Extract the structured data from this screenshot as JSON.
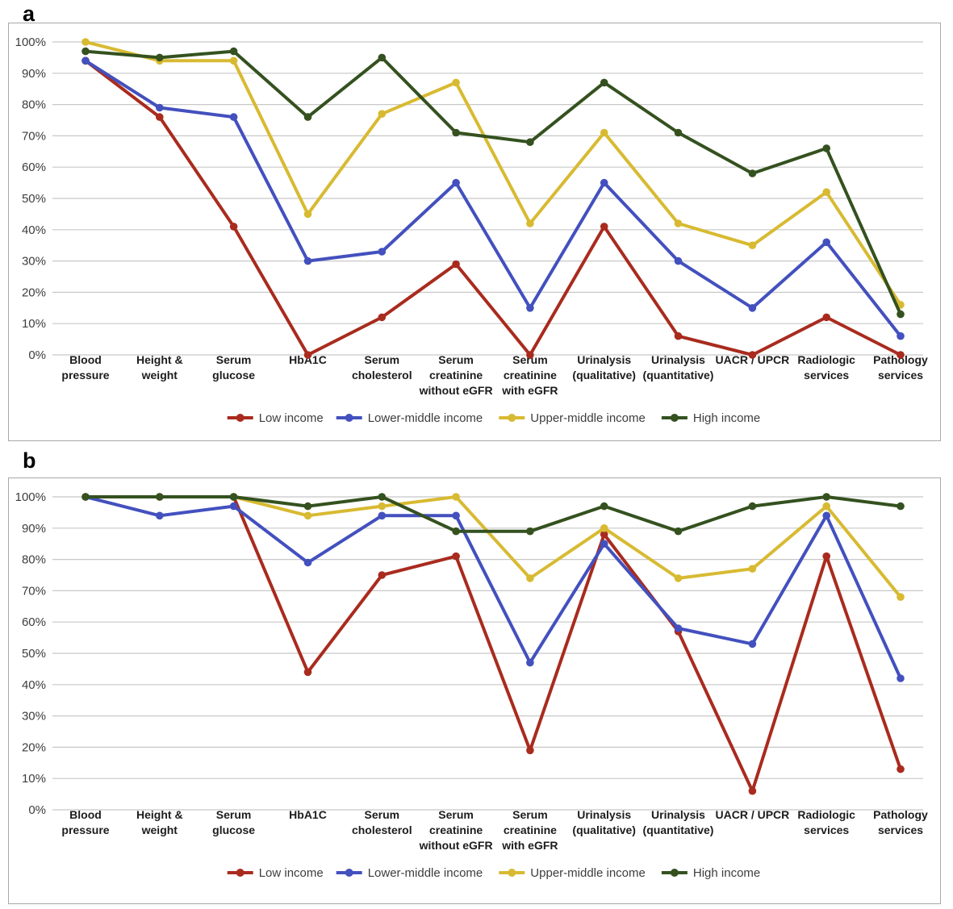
{
  "figure": {
    "panels": [
      {
        "label": "a"
      },
      {
        "label": "b"
      }
    ]
  },
  "chart_data": [
    {
      "type": "line",
      "panel": "a",
      "title": "",
      "xlabel": "",
      "ylabel": "",
      "ylim": [
        0,
        100
      ],
      "grid": true,
      "legend_position": "bottom",
      "yticks": [
        "100%",
        "90%",
        "80%",
        "70%",
        "60%",
        "50%",
        "40%",
        "30%",
        "20%",
        "10%",
        "0%"
      ],
      "categories": [
        "Blood pressure",
        "Height & weight",
        "Serum glucose",
        "HbA1C",
        "Serum cholesterol",
        "Serum creatinine without eGFR",
        "Serum creatinine with eGFR",
        "Urinalysis (qualitative)",
        "Urinalysis (quantitative)",
        "UACR / UPCR",
        "Radiologic services",
        "Pathology services"
      ],
      "category_lines": [
        [
          "Blood",
          "pressure"
        ],
        [
          "Height &",
          "weight"
        ],
        [
          "Serum",
          "glucose"
        ],
        [
          "HbA1C"
        ],
        [
          "Serum",
          "cholesterol"
        ],
        [
          "Serum",
          "creatinine",
          "without eGFR"
        ],
        [
          "Serum",
          "creatinine",
          "with eGFR"
        ],
        [
          "Urinalysis",
          "(qualitative)"
        ],
        [
          "Urinalysis",
          "(quantitative)"
        ],
        [
          "UACR / UPCR"
        ],
        [
          "Radiologic",
          "services"
        ],
        [
          "Pathology",
          "services"
        ]
      ],
      "series": [
        {
          "name": "Low income",
          "color": "#A92B1E",
          "values": [
            94,
            76,
            41,
            0,
            12,
            29,
            0,
            41,
            6,
            0,
            12,
            0
          ]
        },
        {
          "name": "Lower-middle income",
          "color": "#4350BE",
          "values": [
            94,
            79,
            76,
            30,
            33,
            55,
            15,
            55,
            30,
            15,
            36,
            6
          ]
        },
        {
          "name": "Upper-middle income",
          "color": "#D8BA32",
          "values": [
            100,
            94,
            94,
            45,
            77,
            87,
            42,
            71,
            42,
            35,
            52,
            16
          ]
        },
        {
          "name": "High income",
          "color": "#34511F",
          "values": [
            97,
            95,
            97,
            76,
            95,
            71,
            68,
            87,
            71,
            58,
            66,
            13
          ]
        }
      ]
    },
    {
      "type": "line",
      "panel": "b",
      "title": "",
      "xlabel": "",
      "ylabel": "",
      "ylim": [
        0,
        100
      ],
      "grid": true,
      "legend_position": "bottom",
      "yticks": [
        "100%",
        "90%",
        "80%",
        "70%",
        "60%",
        "50%",
        "40%",
        "30%",
        "20%",
        "10%",
        "0%"
      ],
      "categories": [
        "Blood pressure",
        "Height & weight",
        "Serum glucose",
        "HbA1C",
        "Serum cholesterol",
        "Serum creatinine without eGFR",
        "Serum creatinine with eGFR",
        "Urinalysis (qualitative)",
        "Urinalysis (quantitative)",
        "UACR / UPCR",
        "Radiologic services",
        "Pathology services"
      ],
      "category_lines": [
        [
          "Blood",
          "pressure"
        ],
        [
          "Height &",
          "weight"
        ],
        [
          "Serum",
          "glucose"
        ],
        [
          "HbA1C"
        ],
        [
          "Serum",
          "cholesterol"
        ],
        [
          "Serum",
          "creatinine",
          "without eGFR"
        ],
        [
          "Serum",
          "creatinine",
          "with eGFR"
        ],
        [
          "Urinalysis",
          "(qualitative)"
        ],
        [
          "Urinalysis",
          "(quantitative)"
        ],
        [
          "UACR / UPCR"
        ],
        [
          "Radiologic",
          "services"
        ],
        [
          "Pathology",
          "services"
        ]
      ],
      "series": [
        {
          "name": "Low income",
          "color": "#A92B1E",
          "values": [
            100,
            100,
            100,
            44,
            75,
            81,
            19,
            88,
            57,
            6,
            81,
            13
          ]
        },
        {
          "name": "Lower-middle income",
          "color": "#4350BE",
          "values": [
            100,
            94,
            97,
            79,
            94,
            94,
            47,
            85,
            58,
            53,
            94,
            42
          ]
        },
        {
          "name": "Upper-middle income",
          "color": "#D8BA32",
          "values": [
            100,
            100,
            100,
            94,
            97,
            100,
            74,
            90,
            74,
            77,
            97,
            68
          ]
        },
        {
          "name": "High income",
          "color": "#34511F",
          "values": [
            100,
            100,
            100,
            97,
            100,
            89,
            89,
            97,
            89,
            97,
            100,
            97
          ]
        }
      ]
    }
  ]
}
